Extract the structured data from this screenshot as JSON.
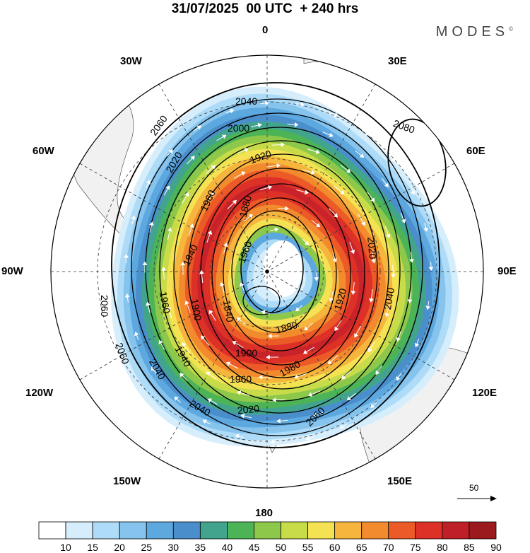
{
  "header": {
    "date": "31/07/2025",
    "time": "00 UTC",
    "lead": "+ 240 hrs"
  },
  "brand": {
    "name": "MODES",
    "mark": "©"
  },
  "lon_labels": {
    "lon_0": "0",
    "lon_30e": "30E",
    "lon_60e": "60E",
    "lon_90e": "90E",
    "lon_120e": "120E",
    "lon_150e": "150E",
    "lon_180": "180",
    "lon_150w": "150W",
    "lon_120w": "120W",
    "lon_90w": "90W",
    "lon_60w": "60W",
    "lon_30w": "30W"
  },
  "contours": {
    "c2080": "2080",
    "c2060_nw": "2060",
    "c2060_w": "2060",
    "c2060_sw": "2060",
    "c2060_se": "2060",
    "c2040_n": "2040",
    "c2040_e": "2040",
    "c2040_sw": "2040",
    "c2040_s": "2040",
    "c2020_nw": "2020",
    "c2020_e": "2020",
    "c2020_s": "2020",
    "c2000": "2000",
    "c1980": "1980",
    "c1960_w": "1960",
    "c1960_s": "1960",
    "c1960_c": "1960",
    "c1960_nw": "1960",
    "c1940_w": "1940",
    "c1940_sw": "1940",
    "c1920_n": "1920",
    "c1920_e": "1920",
    "c1900_w": "1900",
    "c1900_s": "1900",
    "c1880_c": "1880",
    "c1880_s": "1880",
    "c1840": "1840"
  },
  "reference_vector": {
    "value": "50"
  },
  "colorbar": {
    "labels": [
      "10",
      "15",
      "20",
      "25",
      "30",
      "35",
      "40",
      "45",
      "50",
      "55",
      "60",
      "65",
      "70",
      "75",
      "80",
      "85",
      "90"
    ],
    "colors": [
      "#ffffff",
      "#d6eefc",
      "#aedcf8",
      "#86c4ee",
      "#5ea8e0",
      "#4a8fcb",
      "#43a48e",
      "#4cb356",
      "#8dc84a",
      "#c8dc4a",
      "#f5e253",
      "#f6b53c",
      "#f28a2e",
      "#ec5a28",
      "#dd3127",
      "#bf1f26",
      "#9b1a1e"
    ]
  },
  "field": {
    "bands_cx_offset": 16,
    "bands_cy_offset": 5,
    "band_colors": [
      "#d6eefc",
      "#aedcf8",
      "#86c4ee",
      "#5ea8e0",
      "#4a8fcb",
      "#43a48e",
      "#4cb356",
      "#8dc84a",
      "#c8dc4a",
      "#f5e253",
      "#f6b53c",
      "#f28a2e",
      "#ec5a28",
      "#dd3127",
      "#c8232a",
      "#dd3127",
      "#ec5a28",
      "#f28a2e",
      "#f6b53c",
      "#f5e253",
      "#8dc84a",
      "#5ea8e0",
      "#aedcf8",
      "#d6eefc"
    ]
  }
}
